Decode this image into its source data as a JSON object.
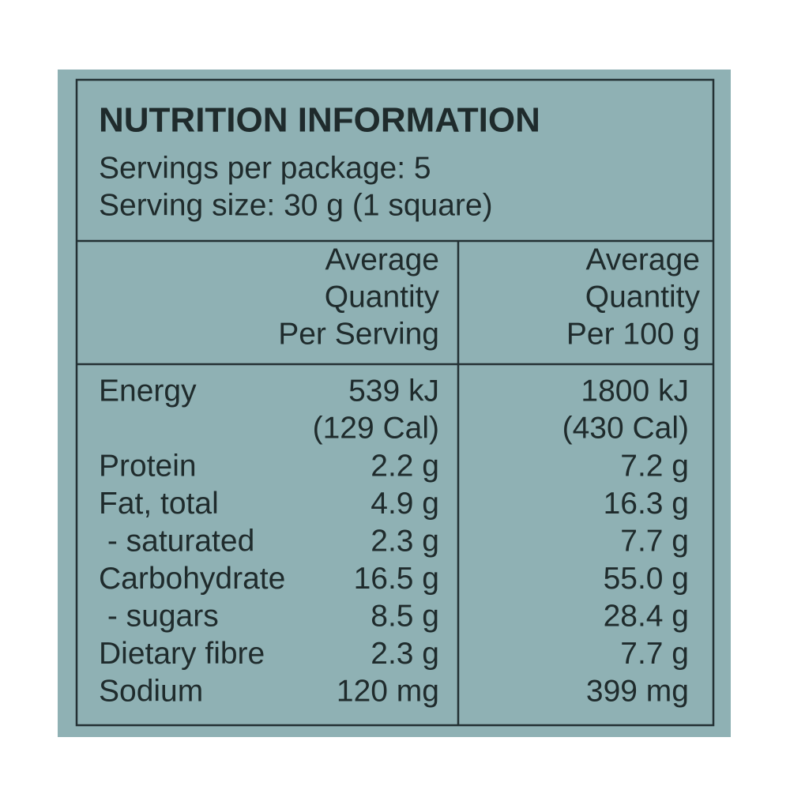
{
  "header": {
    "title": "NUTRITION INFORMATION",
    "servings": "Servings per package: 5",
    "serving_size": "Serving size: 30 g (1 square)"
  },
  "table": {
    "columns": [
      [
        "Average",
        "Quantity",
        "Per Serving"
      ],
      [
        "Average",
        "Quantity",
        "Per 100 g"
      ]
    ],
    "rows": [
      {
        "label": "Energy",
        "per_serving": [
          "539 kJ",
          "(129 Cal)"
        ],
        "per_100g": [
          "1800 kJ",
          "(430 Cal)"
        ]
      },
      {
        "label": "Protein",
        "per_serving": [
          "2.2 g"
        ],
        "per_100g": [
          "7.2 g"
        ]
      },
      {
        "label": "Fat, total",
        "per_serving": [
          "4.9 g"
        ],
        "per_100g": [
          "16.3 g"
        ]
      },
      {
        "label": " - saturated",
        "per_serving": [
          "2.3 g"
        ],
        "per_100g": [
          "7.7 g"
        ]
      },
      {
        "label": "Carbohydrate",
        "per_serving": [
          "16.5 g"
        ],
        "per_100g": [
          "55.0 g"
        ]
      },
      {
        "label": " - sugars",
        "per_serving": [
          "8.5 g"
        ],
        "per_100g": [
          "28.4 g"
        ]
      },
      {
        "label": "Dietary fibre",
        "per_serving": [
          "2.3 g"
        ],
        "per_100g": [
          "7.7 g"
        ]
      },
      {
        "label": "Sodium",
        "per_serving": [
          "120 mg"
        ],
        "per_100g": [
          "399 mg"
        ]
      }
    ]
  }
}
